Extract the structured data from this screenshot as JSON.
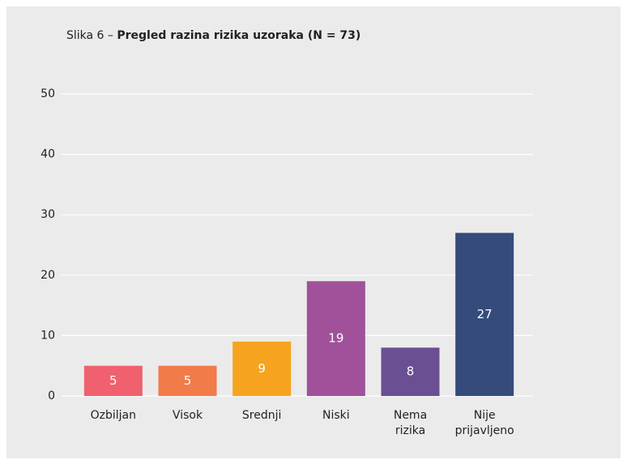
{
  "chart_data": {
    "type": "bar",
    "title": [
      "Slika 6 – ",
      "Pregled razina rizika uzoraka (N = 73)"
    ],
    "categories": [
      "Ozbiljan",
      "Visok",
      "Srednji",
      "Niski",
      "Nema rizika",
      "Nije prijavljeno"
    ],
    "values": [
      5,
      5,
      9,
      19,
      8,
      27
    ],
    "colors": [
      "#f0606e",
      "#f27b4a",
      "#f6a31f",
      "#a0519a",
      "#6a4f92",
      "#344b7c"
    ],
    "ylim": [
      0,
      50
    ],
    "yticks": [
      0,
      10,
      20,
      30,
      40,
      50
    ],
    "grid": true
  }
}
